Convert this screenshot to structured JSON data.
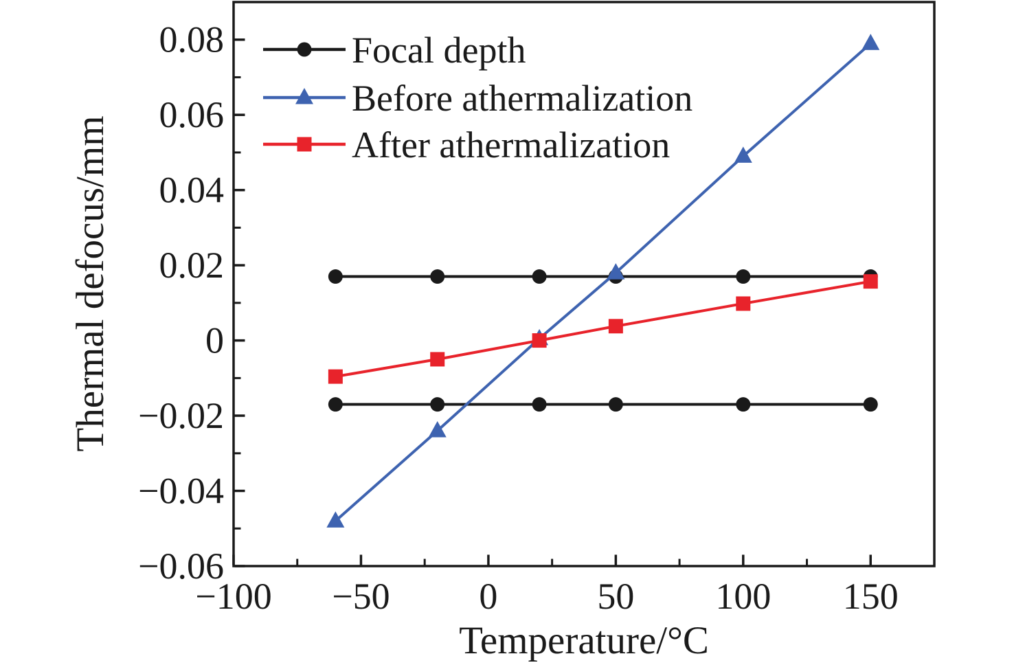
{
  "figure": {
    "background": "#ffffff",
    "axis_color": "#1a1a1a"
  },
  "chart_data": {
    "type": "line",
    "title": "",
    "xlabel": "Temperature/°C",
    "ylabel": "Thermal defocus/mm",
    "xlim": [
      -100,
      175
    ],
    "ylim": [
      -0.06,
      0.09
    ],
    "grid": false,
    "legend_position": "upper-left-inside",
    "x_major_ticks": {
      "values": [
        -100,
        -50,
        0,
        50,
        100,
        150
      ],
      "labels": [
        "−100",
        "−50",
        "0",
        "50",
        "100",
        "150"
      ]
    },
    "x_minor_ticks": [
      -75,
      -25,
      25,
      75,
      125
    ],
    "y_major_ticks": {
      "values": [
        0.08,
        0.06,
        0.04,
        0.02,
        0,
        -0.02,
        -0.04,
        -0.06
      ],
      "labels": [
        "0.08",
        "0.06",
        "0.04",
        "0.02",
        "0",
        "−0.02",
        "−0.04",
        "−0.06"
      ]
    },
    "y_minor_ticks": [
      0.07,
      0.05,
      0.03,
      0.01,
      -0.01,
      -0.03,
      -0.05
    ],
    "series": [
      {
        "name": "Focal depth",
        "color": "#1a1a1a",
        "marker": "circle",
        "segments": [
          {
            "x": [
              -60,
              -20,
              20,
              50,
              100,
              150
            ],
            "y": [
              0.017,
              0.017,
              0.017,
              0.017,
              0.017,
              0.017
            ]
          },
          {
            "x": [
              -60,
              -20,
              20,
              50,
              100,
              150
            ],
            "y": [
              -0.017,
              -0.017,
              -0.017,
              -0.017,
              -0.017,
              -0.017
            ]
          }
        ]
      },
      {
        "name": "Before athermalization",
        "color": "#3e63b0",
        "marker": "triangle",
        "segments": [
          {
            "x": [
              -60,
              -20,
              20,
              50,
              100,
              150
            ],
            "y": [
              -0.048,
              -0.024,
              0.0005,
              0.018,
              0.049,
              0.079
            ]
          }
        ]
      },
      {
        "name": "After athermalization",
        "color": "#e8232b",
        "marker": "square",
        "segments": [
          {
            "x": [
              -60,
              -20,
              20,
              50,
              100,
              150
            ],
            "y": [
              -0.0096,
              -0.005,
              0.0,
              0.0038,
              0.0098,
              0.0157
            ]
          }
        ]
      }
    ]
  }
}
